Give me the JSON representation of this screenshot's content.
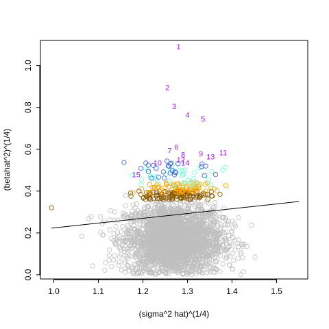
{
  "chart_data": {
    "type": "scatter",
    "title": "",
    "xlabel": "(sigma^2 hat)^(1/4)",
    "ylabel": "(betahat^2)^(1/4)",
    "xlim": [
      0.97,
      1.57
    ],
    "ylim": [
      -0.02,
      1.12
    ],
    "x_ticks": [
      1.0,
      1.1,
      1.2,
      1.3,
      1.4,
      1.5
    ],
    "x_tick_labels": [
      "1.0",
      "1.1",
      "1.2",
      "1.3",
      "1.4",
      "1.5"
    ],
    "y_ticks": [
      0.0,
      0.2,
      0.4,
      0.6,
      0.8,
      1.0
    ],
    "y_tick_labels": [
      "0.0",
      "0.2",
      "0.4",
      "0.6",
      "0.8",
      "1.0"
    ],
    "grid": false,
    "legend": "none",
    "colors": {
      "background_points": "#bebebe",
      "brown_points": "#8b5a00",
      "orange_points": "#ffa500",
      "green_points": "#7fffd4",
      "blue_points": "#4169e1",
      "labels": "#a020f0",
      "fit_line": "#000000"
    },
    "fit_line": {
      "x": [
        0.995,
        1.55
      ],
      "y": [
        0.223,
        0.35
      ]
    },
    "background_cloud": {
      "description": "",
      "center": [
        1.27,
        0.17
      ],
      "note": ""
    },
    "labeled_points": [
      {
        "label": "1",
        "x": 1.28,
        "y": 1.09
      },
      {
        "label": "2",
        "x": 1.255,
        "y": 0.895
      },
      {
        "label": "3",
        "x": 1.27,
        "y": 0.805
      },
      {
        "label": "4",
        "x": 1.3,
        "y": 0.765
      },
      {
        "label": "5",
        "x": 1.335,
        "y": 0.745
      },
      {
        "label": "6",
        "x": 1.275,
        "y": 0.61
      },
      {
        "label": "7",
        "x": 1.26,
        "y": 0.595
      },
      {
        "label": "8",
        "x": 1.29,
        "y": 0.575
      },
      {
        "label": "9",
        "x": 1.33,
        "y": 0.58
      },
      {
        "label": "10",
        "x": 1.233,
        "y": 0.535
      },
      {
        "label": "11",
        "x": 1.38,
        "y": 0.585
      },
      {
        "label": "12",
        "x": 1.285,
        "y": 0.55
      },
      {
        "label": "13",
        "x": 1.352,
        "y": 0.565
      },
      {
        "label": "14",
        "x": 1.295,
        "y": 0.535
      },
      {
        "label": "15",
        "x": 1.185,
        "y": 0.48
      }
    ],
    "outlier_points": [
      {
        "x": 0.995,
        "y": 0.32,
        "color": "brown"
      }
    ]
  }
}
